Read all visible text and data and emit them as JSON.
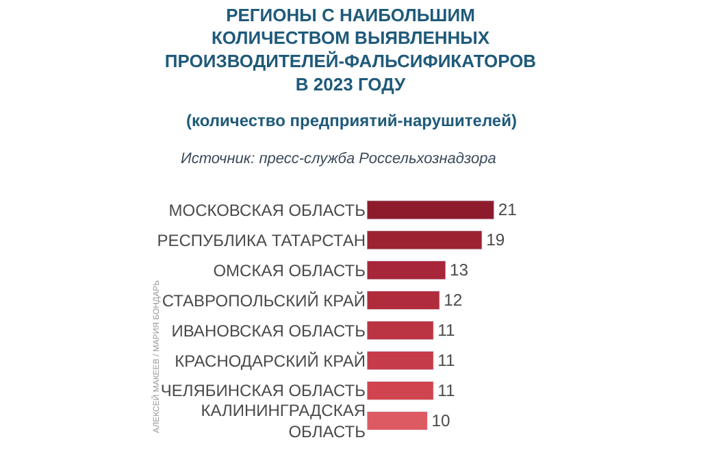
{
  "chart_data": {
    "type": "bar",
    "orientation": "horizontal",
    "title": "РЕГИОНЫ С НАИБОЛЬШИМ КОЛИЧЕСТВОМ ВЫЯВЛЕННЫХ ПРОИЗВОДИТЕЛЕЙ-ФАЛЬСИФИКАТОРОВ В 2023 ГОДУ",
    "subtitle": "(количество предприятий-нарушителей)",
    "annotations": [
      "Источник: пресс-служба Россельхознадзора",
      "АЛЕКСЕЙ МАКЕЕВ / МАРИЯ БОНДАРЬ"
    ],
    "categories": [
      "МОСКОВСКАЯ ОБЛАСТЬ",
      "РЕСПУБЛИКА ТАТАРСТАН",
      "ОМСКАЯ ОБЛАСТЬ",
      "СТАВРОПОЛЬСКИЙ КРАЙ",
      "ИВАНОВСКАЯ ОБЛАСТЬ",
      "КРАСНОДАРСКИЙ КРАЙ",
      "ЧЕЛЯБИНСКАЯ ОБЛАСТЬ",
      "КАЛИНИНГРАДСКАЯ ОБЛАСТЬ"
    ],
    "values": [
      21,
      19,
      13,
      12,
      11,
      11,
      11,
      10
    ],
    "colors": [
      "#8e1b2b",
      "#9b2230",
      "#a8263a",
      "#b02c3c",
      "#bb3443",
      "#c63b4a",
      "#d0444f",
      "#de5a63"
    ],
    "data_labels": true
  }
}
